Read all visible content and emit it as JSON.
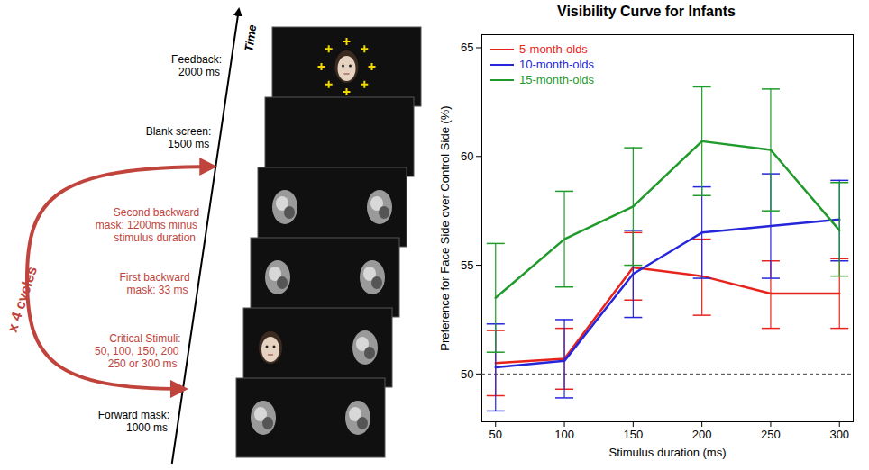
{
  "chart_data": {
    "type": "line",
    "title": "Visibility Curve for Infants",
    "x_label": "Stimulus duration (ms)",
    "y_label": "Preference for Face Side over Control Side (%)",
    "x": [
      50,
      100,
      150,
      200,
      250,
      300
    ],
    "xlim": [
      40,
      310
    ],
    "xticks": [
      50,
      100,
      150,
      200,
      250,
      300
    ],
    "ylim": [
      47.8,
      65.6
    ],
    "yticks": [
      50,
      55,
      60,
      65
    ],
    "baseline": 50,
    "grid": false,
    "legend": "top-left",
    "series": [
      {
        "name": "5-month-olds",
        "color": "#e8231c",
        "values": [
          50.5,
          50.7,
          54.9,
          54.5,
          53.7,
          53.7
        ],
        "lower": [
          49.0,
          49.3,
          53.4,
          52.7,
          52.1,
          52.1
        ],
        "upper": [
          52.0,
          52.1,
          56.5,
          56.2,
          55.2,
          55.3
        ]
      },
      {
        "name": "10-month-olds",
        "color": "#2525d9",
        "values": [
          50.3,
          50.6,
          54.6,
          56.5,
          56.8,
          57.1
        ],
        "lower": [
          48.3,
          48.9,
          52.6,
          54.4,
          54.4,
          55.2
        ],
        "upper": [
          52.3,
          52.5,
          56.6,
          58.6,
          59.2,
          58.9
        ]
      },
      {
        "name": "15-month-olds",
        "color": "#1f9a2b",
        "values": [
          53.5,
          56.2,
          57.7,
          60.7,
          60.3,
          56.6
        ],
        "lower": [
          51.0,
          54.0,
          55.0,
          58.2,
          57.5,
          54.5
        ],
        "upper": [
          56.0,
          58.4,
          60.4,
          63.2,
          63.1,
          58.8
        ]
      }
    ]
  },
  "diagram": {
    "time_label": "Time",
    "cycles_label": "x 4 cycles",
    "cycle_color": "#c0443c",
    "steps": [
      {
        "lines": [
          "Forward mask:",
          "1000 ms"
        ],
        "color": "#000000"
      },
      {
        "lines": [
          "Critical Stimuli:",
          "50, 100, 150, 200",
          "250 or 300 ms"
        ],
        "color": "#c0443c"
      },
      {
        "lines": [
          "First backward",
          "mask: 33 ms"
        ],
        "color": "#c0443c"
      },
      {
        "lines": [
          "Second backward",
          "mask: 1200ms minus",
          "stimulus duration"
        ],
        "color": "#c0443c"
      },
      {
        "lines": [
          "Blank screen:",
          "1500 ms"
        ],
        "color": "#000000"
      },
      {
        "lines": [
          "Feedback:",
          "2000 ms"
        ],
        "color": "#000000"
      }
    ]
  }
}
